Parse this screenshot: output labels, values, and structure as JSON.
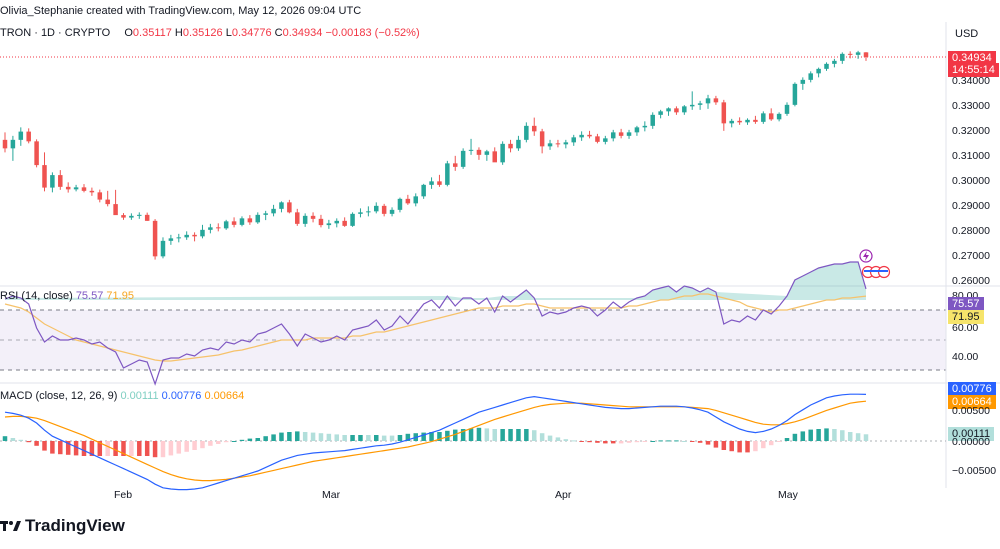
{
  "header": {
    "author_line": "Olivia_Stephanie created with TradingView.com, May 12, 2026 09:04 UTC"
  },
  "symbol": {
    "name": "TRON · 1D · CRYPTO",
    "o_label": "O",
    "o_value": "0.35117",
    "h_label": "H",
    "h_value": "0.35126",
    "l_label": "L",
    "l_value": "0.34776",
    "c_label": "C",
    "c_value": "0.34934",
    "change": "−0.00183 (−0.52%)"
  },
  "currency": "USD",
  "price_axis": {
    "ticks": [
      "0.34000",
      "0.33000",
      "0.32000",
      "0.31000",
      "0.30000",
      "0.29000",
      "0.28000",
      "0.27000",
      "0.26000"
    ],
    "last_price": "0.34934",
    "countdown": "14:55:14"
  },
  "rsi": {
    "title": "RSI (14, close)",
    "rsi_value": "75.57",
    "ma_value": "71.95",
    "ticks": [
      "80.00",
      "60.00",
      "40.00"
    ]
  },
  "macd": {
    "title": "MACD (close, 12, 26, 9)",
    "hist_value": "0.00111",
    "macd_value": "0.00776",
    "signal_value": "0.00664",
    "ticks": [
      "0.00500",
      "0.00000",
      "−0.00500"
    ]
  },
  "time_axis": {
    "labels": [
      "Feb",
      "Mar",
      "Apr",
      "May"
    ]
  },
  "brand": {
    "logo_text": "TradingView"
  },
  "colors": {
    "up": "#26a69a",
    "down": "#ef5350",
    "rsi": "#7e57c2",
    "rsi_ma": "#f6c26b",
    "macd": "#2962ff",
    "signal": "#ff9800",
    "price_tag": "#f23645"
  },
  "chart_data": {
    "type": "candlestick",
    "title": "TRON · 1D · CRYPTO",
    "ylabel": "USD",
    "ylim": [
      0.2535,
      0.3528
    ],
    "x_labels": [
      "Feb",
      "Mar",
      "Apr",
      "May"
    ],
    "candles_ohlc": [
      [
        0.3162,
        0.3192,
        0.3112,
        0.3128
      ],
      [
        0.3128,
        0.3178,
        0.3078,
        0.3162
      ],
      [
        0.3162,
        0.3212,
        0.3138,
        0.3195
      ],
      [
        0.3195,
        0.3208,
        0.3148,
        0.3156
      ],
      [
        0.3156,
        0.3164,
        0.3052,
        0.3061
      ],
      [
        0.3061,
        0.3112,
        0.2956,
        0.2971
      ],
      [
        0.2971,
        0.3032,
        0.2952,
        0.3021
      ],
      [
        0.3021,
        0.3041,
        0.2962,
        0.2974
      ],
      [
        0.2974,
        0.2992,
        0.2951,
        0.2964
      ],
      [
        0.2964,
        0.2982,
        0.2956,
        0.2972
      ],
      [
        0.2972,
        0.2985,
        0.2952,
        0.2958
      ],
      [
        0.2958,
        0.2971,
        0.2938,
        0.2952
      ],
      [
        0.2952,
        0.2963,
        0.2912,
        0.2923
      ],
      [
        0.2923,
        0.2958,
        0.2896,
        0.2905
      ],
      [
        0.2905,
        0.2962,
        0.2862,
        0.2861
      ],
      [
        0.2861,
        0.2869,
        0.2842,
        0.2851
      ],
      [
        0.2851,
        0.2868,
        0.2842,
        0.2858
      ],
      [
        0.2858,
        0.2872,
        0.2846,
        0.2862
      ],
      [
        0.2862,
        0.2871,
        0.2838,
        0.2838
      ],
      [
        0.2838,
        0.2845,
        0.2683,
        0.2696
      ],
      [
        0.2696,
        0.2772,
        0.2688,
        0.2758
      ],
      [
        0.2758,
        0.2782,
        0.2742,
        0.2768
      ],
      [
        0.2768,
        0.2786,
        0.2752,
        0.2772
      ],
      [
        0.2772,
        0.2796,
        0.2762,
        0.2782
      ],
      [
        0.2782,
        0.2792,
        0.2756,
        0.2776
      ],
      [
        0.2776,
        0.2822,
        0.2768,
        0.2802
      ],
      [
        0.2802,
        0.2826,
        0.2788,
        0.2812
      ],
      [
        0.2812,
        0.2828,
        0.2796,
        0.2808
      ],
      [
        0.2808,
        0.2842,
        0.2802,
        0.2836
      ],
      [
        0.2836,
        0.2852,
        0.2812,
        0.2822
      ],
      [
        0.2822,
        0.2856,
        0.2816,
        0.2848
      ],
      [
        0.2848,
        0.2861,
        0.2822,
        0.2832
      ],
      [
        0.2832,
        0.2872,
        0.2826,
        0.2862
      ],
      [
        0.2862,
        0.2878,
        0.2841,
        0.2868
      ],
      [
        0.2868,
        0.2902,
        0.2856,
        0.2886
      ],
      [
        0.2886,
        0.2916,
        0.2872,
        0.2912
      ],
      [
        0.2912,
        0.2922,
        0.2868,
        0.2872
      ],
      [
        0.2872,
        0.2886,
        0.2818,
        0.2826
      ],
      [
        0.2826,
        0.2868,
        0.2814,
        0.2858
      ],
      [
        0.2858,
        0.2872,
        0.2832,
        0.2846
      ],
      [
        0.2846,
        0.2862,
        0.2812,
        0.2821
      ],
      [
        0.2821,
        0.2842,
        0.2806,
        0.2828
      ],
      [
        0.2828,
        0.2848,
        0.2812,
        0.2838
      ],
      [
        0.2838,
        0.2852,
        0.2814,
        0.2818
      ],
      [
        0.2818,
        0.2872,
        0.2814,
        0.2866
      ],
      [
        0.2866,
        0.2888,
        0.2852,
        0.2872
      ],
      [
        0.2872,
        0.2896,
        0.2856,
        0.2876
      ],
      [
        0.2876,
        0.2912,
        0.2868,
        0.2898
      ],
      [
        0.2898,
        0.2906,
        0.2856,
        0.2866
      ],
      [
        0.2866,
        0.2892,
        0.2856,
        0.2882
      ],
      [
        0.2882,
        0.2931,
        0.2872,
        0.2926
      ],
      [
        0.2926,
        0.2942,
        0.2902,
        0.2908
      ],
      [
        0.2908,
        0.2948,
        0.2896,
        0.2936
      ],
      [
        0.2936,
        0.2986,
        0.2926,
        0.2982
      ],
      [
        0.2982,
        0.3012,
        0.2966,
        0.2996
      ],
      [
        0.2996,
        0.3022,
        0.2974,
        0.2982
      ],
      [
        0.2982,
        0.3078,
        0.2976,
        0.3068
      ],
      [
        0.3068,
        0.3098,
        0.3038,
        0.3054
      ],
      [
        0.3054,
        0.3128,
        0.3046,
        0.3118
      ],
      [
        0.3118,
        0.3166,
        0.3102,
        0.3122
      ],
      [
        0.3122,
        0.3132,
        0.3082,
        0.3102
      ],
      [
        0.3102,
        0.3122,
        0.3078,
        0.3116
      ],
      [
        0.3116,
        0.3132,
        0.3096,
        0.3072
      ],
      [
        0.3072,
        0.3156,
        0.3062,
        0.3146
      ],
      [
        0.3146,
        0.3162,
        0.3112,
        0.3128
      ],
      [
        0.3128,
        0.3178,
        0.3118,
        0.3162
      ],
      [
        0.3162,
        0.3232,
        0.3152,
        0.3218
      ],
      [
        0.3218,
        0.3251,
        0.3178,
        0.3196
      ],
      [
        0.3196,
        0.3206,
        0.3108,
        0.3136
      ],
      [
        0.3136,
        0.3162,
        0.3122,
        0.3148
      ],
      [
        0.3148,
        0.3162,
        0.3132,
        0.3144
      ],
      [
        0.3144,
        0.3162,
        0.3128,
        0.3152
      ],
      [
        0.3152,
        0.3182,
        0.3138,
        0.3172
      ],
      [
        0.3172,
        0.3196,
        0.3158,
        0.3182
      ],
      [
        0.3182,
        0.3198,
        0.3168,
        0.3176
      ],
      [
        0.3176,
        0.3186,
        0.3148,
        0.3154
      ],
      [
        0.3154,
        0.3178,
        0.3144,
        0.3168
      ],
      [
        0.3168,
        0.3202,
        0.3156,
        0.3192
      ],
      [
        0.3192,
        0.3206,
        0.3168,
        0.3178
      ],
      [
        0.3178,
        0.3202,
        0.3166,
        0.3192
      ],
      [
        0.3192,
        0.3218,
        0.3178,
        0.3212
      ],
      [
        0.3212,
        0.3236,
        0.3196,
        0.3218
      ],
      [
        0.3218,
        0.3272,
        0.3206,
        0.3262
      ],
      [
        0.3262,
        0.3282,
        0.3248,
        0.3276
      ],
      [
        0.3276,
        0.3292,
        0.3258,
        0.3288
      ],
      [
        0.3288,
        0.3296,
        0.3262,
        0.3272
      ],
      [
        0.3272,
        0.3301,
        0.3262,
        0.3296
      ],
      [
        0.3296,
        0.3356,
        0.3282,
        0.3302
      ],
      [
        0.3302,
        0.3318,
        0.3282,
        0.3308
      ],
      [
        0.3308,
        0.3342,
        0.3286,
        0.3328
      ],
      [
        0.3328,
        0.3338,
        0.3302,
        0.3312
      ],
      [
        0.3312,
        0.3322,
        0.3198,
        0.3228
      ],
      [
        0.3228,
        0.3246,
        0.3212,
        0.3238
      ],
      [
        0.3238,
        0.3252,
        0.3222,
        0.3232
      ],
      [
        0.3232,
        0.3248,
        0.3222,
        0.3242
      ],
      [
        0.3242,
        0.3258,
        0.3226,
        0.3234
      ],
      [
        0.3234,
        0.3276,
        0.3226,
        0.3268
      ],
      [
        0.3268,
        0.3288,
        0.3238,
        0.3244
      ],
      [
        0.3244,
        0.3272,
        0.3236,
        0.3266
      ],
      [
        0.3266,
        0.3312,
        0.3258,
        0.3302
      ],
      [
        0.3302,
        0.3392,
        0.3296,
        0.3386
      ],
      [
        0.3386,
        0.3412,
        0.3362,
        0.3402
      ],
      [
        0.3402,
        0.3436,
        0.3392,
        0.3428
      ],
      [
        0.3428,
        0.3451,
        0.3412,
        0.3446
      ],
      [
        0.3446,
        0.3472,
        0.3438,
        0.3466
      ],
      [
        0.3466,
        0.3486,
        0.3452,
        0.3478
      ],
      [
        0.3478,
        0.3512,
        0.3466,
        0.3506
      ],
      [
        0.3506,
        0.3516,
        0.3488,
        0.3502
      ],
      [
        0.3502,
        0.3518,
        0.3486,
        0.3512
      ],
      [
        0.3512,
        0.3513,
        0.3478,
        0.3493
      ]
    ],
    "rsi_series": [
      70.5,
      72,
      71,
      68,
      56,
      49,
      52,
      50,
      50,
      51,
      50,
      48,
      49,
      46,
      44,
      36,
      38,
      40,
      39,
      28,
      40,
      41,
      41,
      43,
      42,
      45,
      46,
      45,
      49,
      48,
      50,
      49,
      53,
      54,
      56,
      58,
      53,
      47,
      53,
      51,
      49,
      50,
      52,
      50,
      55,
      56,
      57,
      60,
      55,
      57,
      62,
      58,
      63,
      68,
      70,
      66,
      72,
      67,
      71,
      71,
      68,
      71,
      64,
      72,
      69,
      72,
      75,
      71,
      62,
      64,
      63,
      64,
      66,
      67,
      66,
      62,
      65,
      69,
      66,
      69,
      71,
      72,
      75,
      76,
      77,
      74,
      77,
      76,
      74,
      76,
      74,
      58,
      60,
      59,
      62,
      60,
      65,
      63,
      67,
      72,
      80,
      82,
      84,
      86,
      87,
      88,
      88,
      89,
      89,
      75.57
    ],
    "rsi_ma_series": [
      68,
      67,
      66,
      64,
      61,
      58,
      56,
      54,
      52,
      50,
      49,
      48,
      47,
      46,
      45,
      44,
      43,
      42,
      41,
      40,
      39.5,
      39.5,
      40,
      40.5,
      41,
      41.5,
      42,
      42.5,
      43.5,
      44.5,
      45,
      46,
      47,
      48,
      49,
      50,
      50,
      50,
      50,
      51,
      51,
      51,
      51,
      51,
      52,
      52,
      53,
      54,
      54,
      55,
      56,
      57,
      58,
      59,
      60,
      61,
      62,
      63,
      64,
      65,
      66,
      66,
      66,
      67,
      67,
      67,
      68,
      68,
      67,
      66,
      66,
      66,
      66,
      66,
      66,
      66,
      66,
      66,
      66,
      67,
      67,
      68,
      69,
      70,
      70,
      71,
      72,
      72,
      73,
      73,
      72,
      71,
      70,
      69,
      67,
      66,
      65,
      64,
      65,
      65,
      66,
      67,
      68,
      69,
      70,
      70,
      71,
      71,
      71.5,
      71.95
    ],
    "macd_series": [
      0.0048,
      0.0046,
      0.0043,
      0.0038,
      0.003,
      0.0018,
      0.0008,
      0.0002,
      -0.0004,
      -0.001,
      -0.0016,
      -0.0022,
      -0.0028,
      -0.0034,
      -0.004,
      -0.0046,
      -0.0052,
      -0.0058,
      -0.0064,
      -0.0072,
      -0.0078,
      -0.008,
      -0.0081,
      -0.0081,
      -0.008,
      -0.0078,
      -0.0074,
      -0.007,
      -0.0066,
      -0.0062,
      -0.0058,
      -0.0054,
      -0.005,
      -0.0044,
      -0.0038,
      -0.0032,
      -0.0028,
      -0.0024,
      -0.0022,
      -0.002,
      -0.0019,
      -0.0018,
      -0.0017,
      -0.0016,
      -0.0014,
      -0.0012,
      -0.001,
      -0.0008,
      -0.0007,
      -0.0005,
      -0.0002,
      0.0002,
      0.0006,
      0.001,
      0.0014,
      0.0018,
      0.0024,
      0.003,
      0.0036,
      0.0042,
      0.0048,
      0.0052,
      0.0056,
      0.006,
      0.0064,
      0.0068,
      0.0072,
      0.0074,
      0.0072,
      0.007,
      0.0068,
      0.0066,
      0.0064,
      0.0062,
      0.006,
      0.0058,
      0.0056,
      0.0055,
      0.0054,
      0.0054,
      0.0055,
      0.0056,
      0.0057,
      0.0058,
      0.0058,
      0.0058,
      0.0057,
      0.0055,
      0.0052,
      0.0048,
      0.004,
      0.0032,
      0.0026,
      0.002,
      0.0016,
      0.0014,
      0.0016,
      0.002,
      0.0026,
      0.0034,
      0.0044,
      0.0052,
      0.006,
      0.0066,
      0.0072,
      0.0075,
      0.0077,
      0.0078,
      0.0078,
      0.00776
    ],
    "signal_series": [
      0.004,
      0.0041,
      0.0041,
      0.004,
      0.0038,
      0.0034,
      0.0029,
      0.0024,
      0.0019,
      0.0014,
      0.0009,
      0.0003,
      -0.0003,
      -0.0009,
      -0.0015,
      -0.0021,
      -0.0027,
      -0.0033,
      -0.0039,
      -0.0045,
      -0.0051,
      -0.0056,
      -0.006,
      -0.0063,
      -0.0065,
      -0.0066,
      -0.0066,
      -0.0065,
      -0.0064,
      -0.0062,
      -0.006,
      -0.0058,
      -0.0055,
      -0.0052,
      -0.0049,
      -0.0046,
      -0.0043,
      -0.004,
      -0.0037,
      -0.0034,
      -0.0032,
      -0.003,
      -0.0028,
      -0.0026,
      -0.0024,
      -0.0022,
      -0.002,
      -0.0018,
      -0.0016,
      -0.0014,
      -0.0012,
      -0.001,
      -0.0007,
      -0.0004,
      -0.0001,
      0.0003,
      0.0007,
      0.0011,
      0.0016,
      0.0021,
      0.0026,
      0.0031,
      0.0036,
      0.004,
      0.0044,
      0.0048,
      0.0052,
      0.0056,
      0.0059,
      0.0061,
      0.0062,
      0.0063,
      0.0063,
      0.0063,
      0.0062,
      0.0061,
      0.006,
      0.0059,
      0.0058,
      0.0057,
      0.0057,
      0.0057,
      0.0057,
      0.0057,
      0.0057,
      0.0057,
      0.0057,
      0.0056,
      0.0055,
      0.0054,
      0.0051,
      0.0047,
      0.0043,
      0.0039,
      0.0035,
      0.0031,
      0.0028,
      0.0027,
      0.0027,
      0.0029,
      0.0032,
      0.0036,
      0.0041,
      0.0046,
      0.0051,
      0.0055,
      0.0059,
      0.0063,
      0.0065,
      0.00664
    ]
  }
}
